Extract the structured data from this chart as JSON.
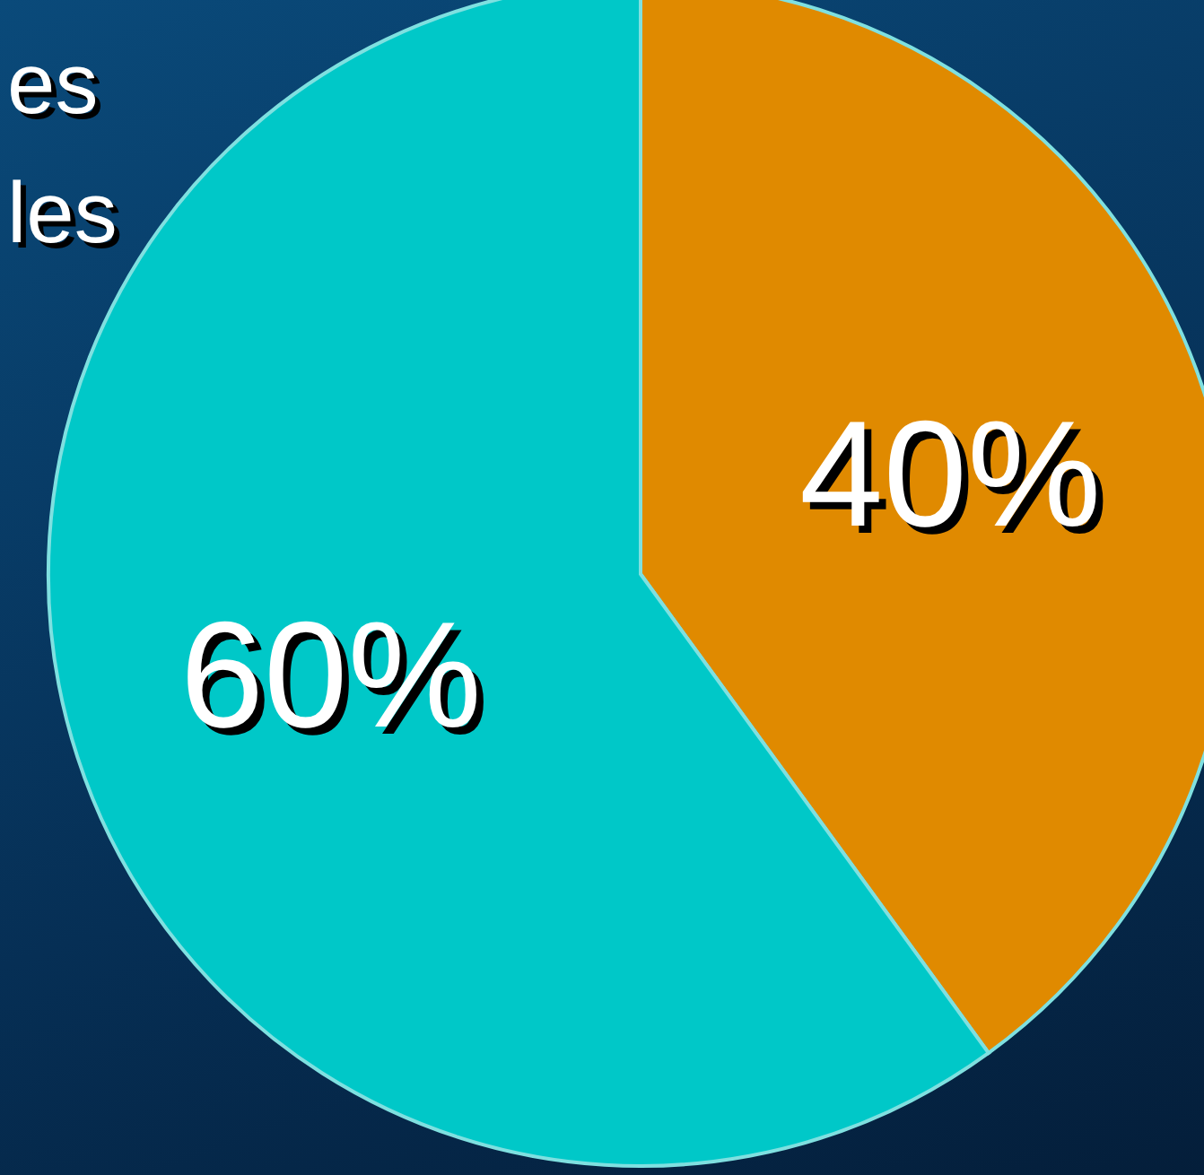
{
  "chart_data": {
    "type": "pie",
    "categories": [
      null,
      null
    ],
    "values": [
      40,
      60
    ],
    "colors": [
      "#e08a00",
      "#00c8c8"
    ],
    "value_labels": [
      "40%",
      "60%"
    ],
    "annotations": [
      "es",
      "les"
    ]
  }
}
